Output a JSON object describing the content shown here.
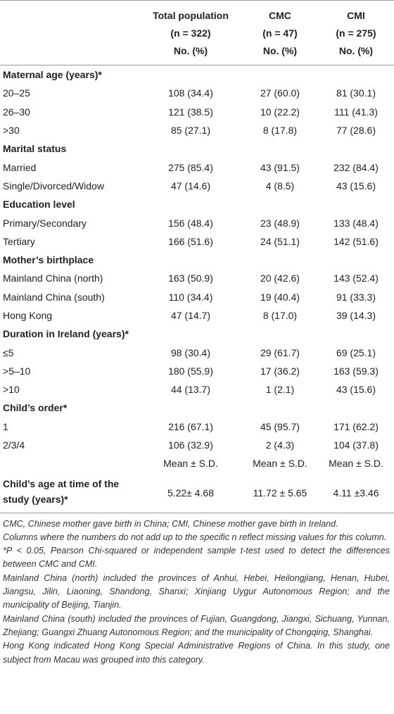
{
  "table": {
    "columns": [
      {
        "name": "Total population",
        "n": "(n = 322)",
        "unit": "No. (%)"
      },
      {
        "name": "CMC",
        "n": "(n = 47)",
        "unit": "No. (%)"
      },
      {
        "name": "CMI",
        "n": "(n = 275)",
        "unit": "No. (%)"
      }
    ],
    "sections": [
      {
        "title": "Maternal age (years)*",
        "rows": [
          {
            "label": "20–25",
            "values": [
              "108 (34.4)",
              "27 (60.0)",
              "81 (30.1)"
            ]
          },
          {
            "label": "26–30",
            "values": [
              "121 (38.5)",
              "10 (22.2)",
              "111 (41.3)"
            ]
          },
          {
            "label": ">30",
            "values": [
              "85 (27.1)",
              "8 (17.8)",
              "77 (28.6)"
            ]
          }
        ]
      },
      {
        "title": "Marital status",
        "rows": [
          {
            "label": "Married",
            "values": [
              "275 (85.4)",
              "43 (91.5)",
              "232 (84.4)"
            ]
          },
          {
            "label": "Single/Divorced/Widow",
            "values": [
              "47 (14.6)",
              "4 (8.5)",
              "43 (15.6)"
            ]
          }
        ]
      },
      {
        "title": "Education level",
        "rows": [
          {
            "label": "Primary/Secondary",
            "values": [
              "156 (48.4)",
              "23 (48.9)",
              "133 (48.4)"
            ]
          },
          {
            "label": "Tertiary",
            "values": [
              "166 (51.6)",
              "24 (51.1)",
              "142 (51.6)"
            ]
          }
        ]
      },
      {
        "title": "Mother’s birthplace",
        "rows": [
          {
            "label": "Mainland China (north)",
            "values": [
              "163 (50.9)",
              "20 (42.6)",
              "143 (52.4)"
            ]
          },
          {
            "label": "Mainland China (south)",
            "values": [
              "110 (34.4)",
              "19 (40.4)",
              "91 (33.3)"
            ]
          },
          {
            "label": "Hong Kong",
            "values": [
              "47 (14.7)",
              "8 (17.0)",
              "39 (14.3)"
            ]
          }
        ]
      },
      {
        "title": "Duration in Ireland (years)*",
        "rows": [
          {
            "label": "≤5",
            "values": [
              "98 (30.4)",
              "29 (61.7)",
              "69 (25.1)"
            ]
          },
          {
            "label": ">5–10",
            "values": [
              "180 (55.9)",
              "17 (36.2)",
              "163 (59.3)"
            ]
          },
          {
            "label": ">10",
            "values": [
              "44 (13.7)",
              "1 (2.1)",
              "43 (15.6)"
            ]
          }
        ]
      },
      {
        "title": "Child’s order*",
        "rows": [
          {
            "label": "1",
            "values": [
              "216 (67.1)",
              "45 (95.7)",
              "171 (62.2)"
            ]
          },
          {
            "label": "2/3/4",
            "values": [
              "106 (32.9)",
              "2 (4.3)",
              "104 (37.8)"
            ]
          }
        ]
      }
    ],
    "summary": {
      "headers": [
        "Mean ± S.D.",
        "Mean ± S.D.",
        "Mean ± S.D."
      ],
      "label": "Child’s age at time of the study (years)*",
      "values": [
        "5.22± 4.68",
        "11.72 ± 5.65",
        "4.11 ±3.46"
      ]
    },
    "footnotes": [
      "CMC, Chinese mother gave birth in China; CMI, Chinese mother gave birth in Ireland.",
      "Columns where the numbers do not add up to the specific n reflect missing values for this column.",
      "*P < 0.05, Pearson Chi-squared or independent sample t-test used to detect the differences between CMC and CMI.",
      "Mainland China (north) included the provinces of Anhui, Hebei, Heilongjiang, Henan, Hubei, Jiangsu, Jilin, Liaoning, Shandong, Shanxi; Xinjiang Uygur Autonomous Region; and the municipality of Beijing, Tianjin.",
      "Mainland China (south) included the provinces of Fujian, Guangdong, Jiangxi, Sichuang, Yunnan, Zhejiang; Guangxi Zhuang Autonomous Region; and the municipality of Chongqing, Shanghai.",
      "Hong Kong indicated Hong Kong Special Administrative Regions of China. In this study, one subject from Macau was grouped into this category."
    ]
  }
}
